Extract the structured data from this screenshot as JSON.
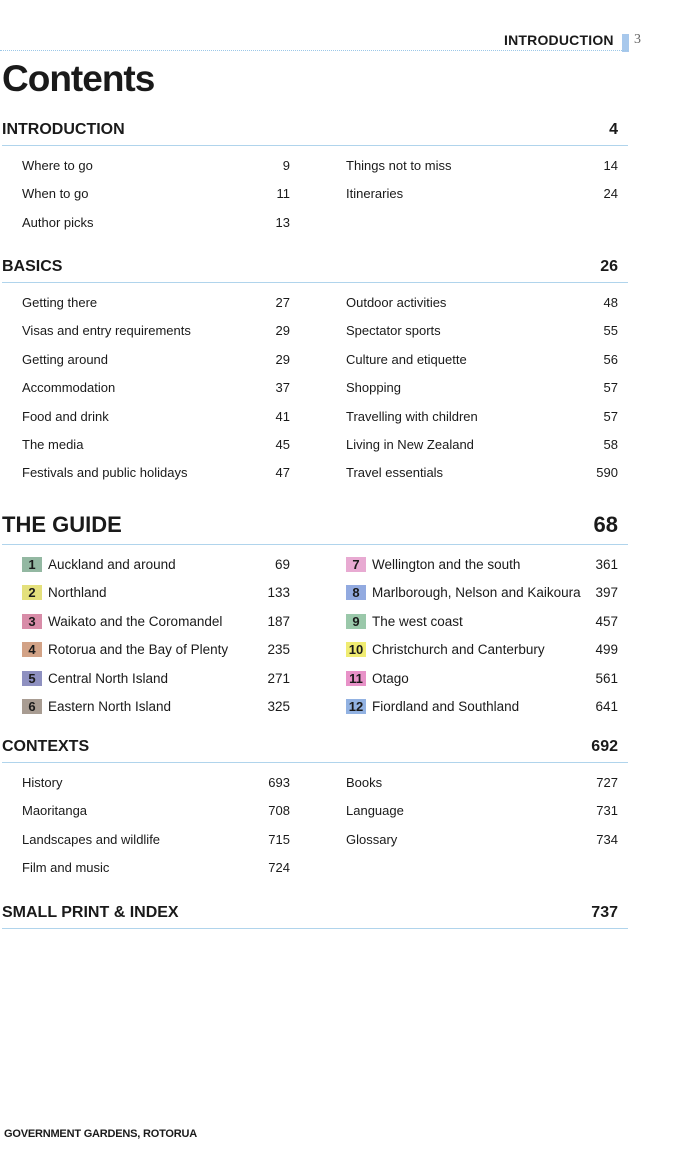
{
  "running_head": {
    "section": "INTRODUCTION",
    "page": "3",
    "accent": "#a8c8ec"
  },
  "title": "Contents",
  "sections": [
    {
      "title": "INTRODUCTION",
      "page": "4",
      "left": [
        [
          "Where to go",
          "9"
        ],
        [
          "When to go",
          "11"
        ],
        [
          "Author picks",
          "13"
        ]
      ],
      "right": [
        [
          "Things not to miss",
          "14"
        ],
        [
          "Itineraries",
          "24"
        ]
      ]
    },
    {
      "title": "BASICS",
      "page": "26",
      "left": [
        [
          "Getting there",
          "27"
        ],
        [
          "Visas and entry requirements",
          "29"
        ],
        [
          "Getting around",
          "29"
        ],
        [
          "Accommodation",
          "37"
        ],
        [
          "Food and drink",
          "41"
        ],
        [
          "The media",
          "45"
        ],
        [
          "Festivals and public holidays",
          "47"
        ]
      ],
      "right": [
        [
          "Outdoor activities",
          "48"
        ],
        [
          "Spectator sports",
          "55"
        ],
        [
          "Culture and etiquette",
          "56"
        ],
        [
          "Shopping",
          "57"
        ],
        [
          "Travelling with children",
          "57"
        ],
        [
          "Living in New Zealand",
          "58"
        ],
        [
          "Travel essentials",
          "590"
        ]
      ]
    },
    {
      "title": "THE GUIDE",
      "page": "68",
      "left": [
        [
          "1",
          "Auckland and around",
          "69",
          "#93b8a2"
        ],
        [
          "2",
          "Northland",
          "133",
          "#e4e07c"
        ],
        [
          "3",
          "Waikato and the Coromandel",
          "187",
          "#d88ca8"
        ],
        [
          "4",
          "Rotorua and the Bay of Plenty",
          "235",
          "#d2a286"
        ],
        [
          "5",
          "Central North Island",
          "271",
          "#8e90c0"
        ],
        [
          "6",
          "Eastern North Island",
          "325",
          "#a89c92"
        ]
      ],
      "right": [
        [
          "7",
          "Wellington and the south",
          "361",
          "#e8aad2"
        ],
        [
          "8",
          "Marlborough, Nelson and Kaikoura",
          "397",
          "#92aae0"
        ],
        [
          "9",
          "The west coast",
          "457",
          "#9ac8aa"
        ],
        [
          "10",
          "Christchurch and Canterbury",
          "499",
          "#f0ec72"
        ],
        [
          "11",
          "Otago",
          "561",
          "#e892c8"
        ],
        [
          "12",
          "Fiordland and Southland",
          "641",
          "#92b2e2"
        ]
      ]
    },
    {
      "title": "CONTEXTS",
      "page": "692",
      "left": [
        [
          "History",
          "693"
        ],
        [
          "Maoritanga",
          "708"
        ],
        [
          "Landscapes and wildlife",
          "715"
        ],
        [
          "Film and music",
          "724"
        ]
      ],
      "right": [
        [
          "Books",
          "727"
        ],
        [
          "Language",
          "731"
        ],
        [
          "Glossary",
          "734"
        ]
      ]
    },
    {
      "title": "SMALL PRINT & INDEX",
      "page": "737",
      "left": [],
      "right": []
    }
  ],
  "caption": "GOVERNMENT GARDENS, ROTORUA"
}
